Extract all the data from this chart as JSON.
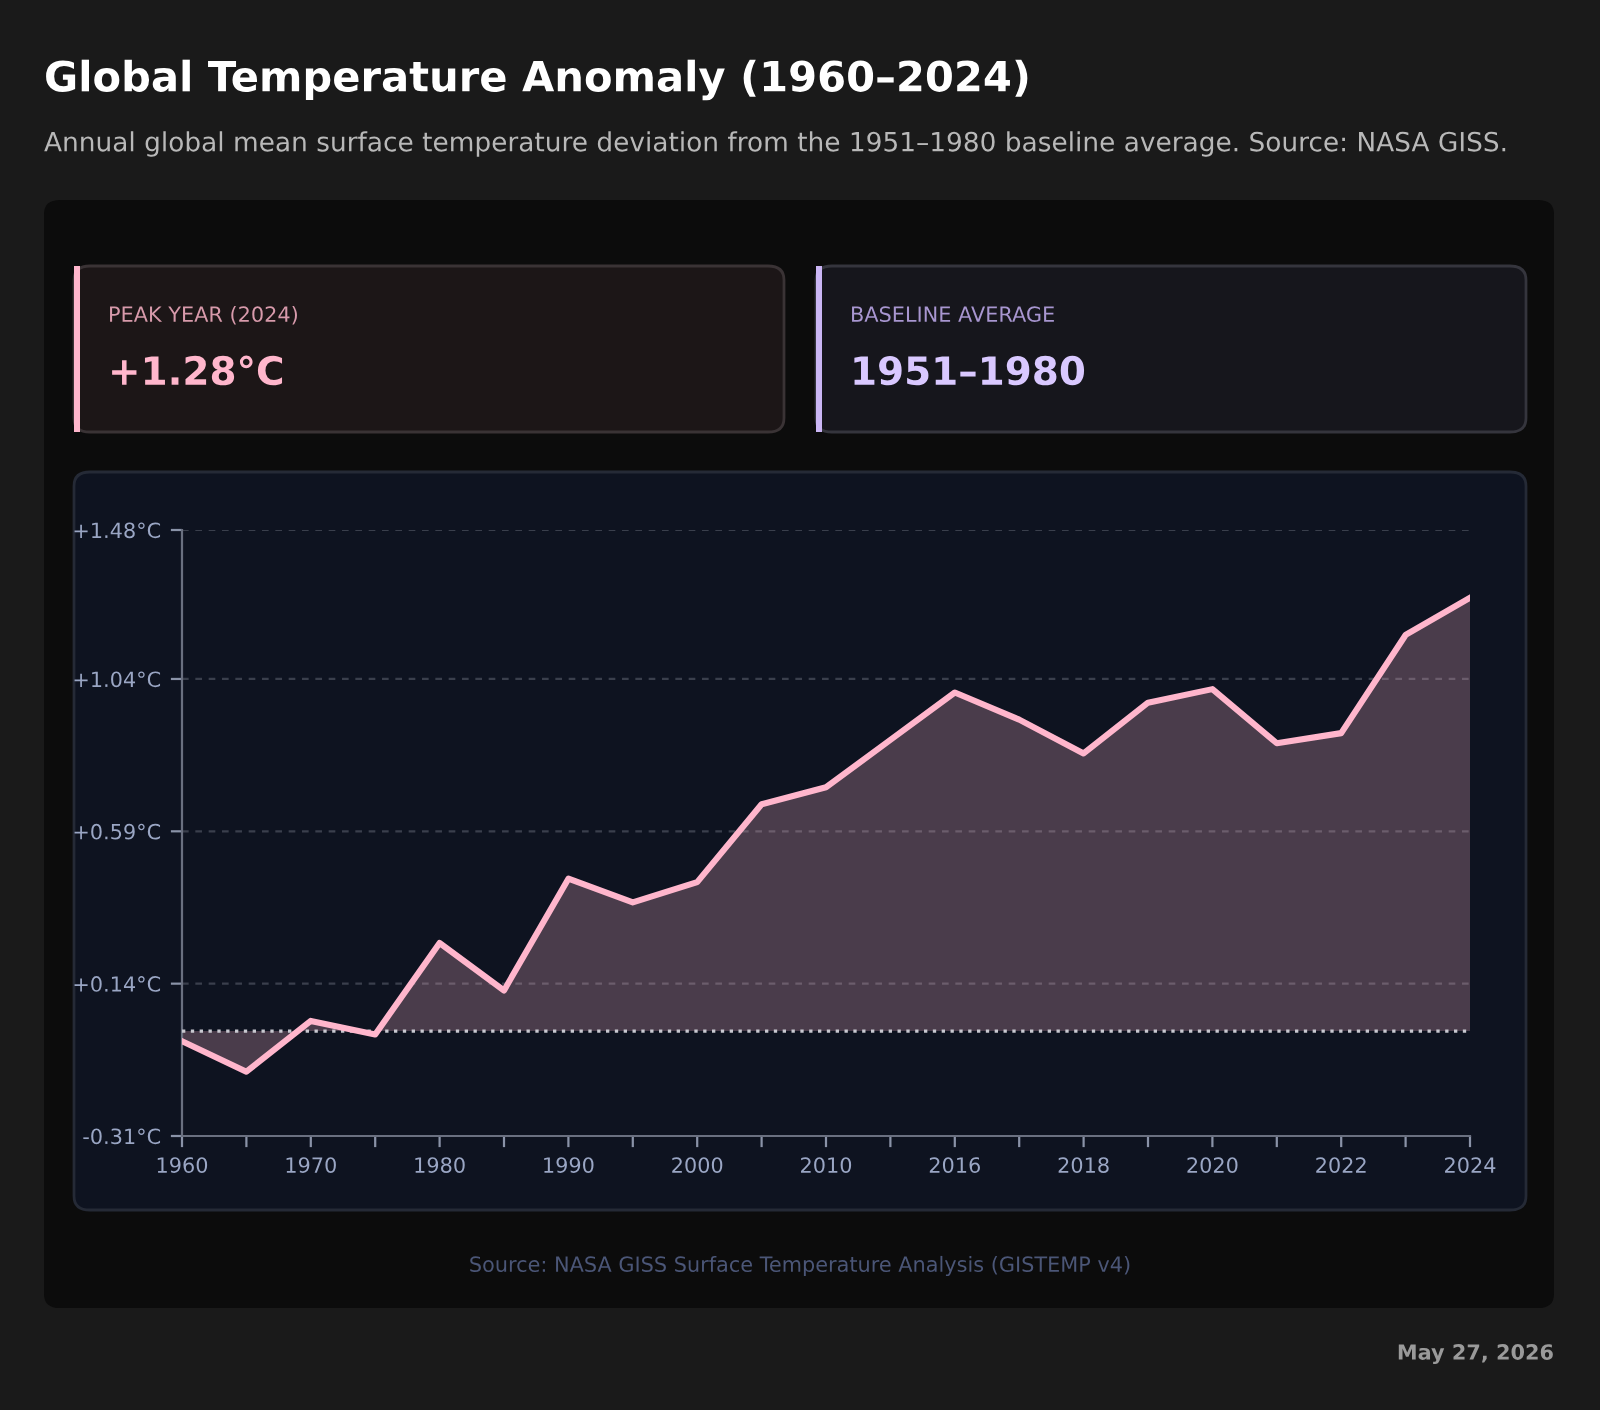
{
  "chart_data": {
    "type": "area",
    "title": "Global Temperature Anomaly (1960–2024)",
    "subtitle": "Annual global mean surface temperature deviation from the 1951–1980 baseline average. Source: NASA GISS.",
    "annotations": [
      "PEAK YEAR (2024)",
      "+1.28°C",
      "BASELINE AVERAGE",
      "1951–1980",
      "Source: NASA GISS Surface Temperature Analysis (GISTEMP v4)",
      "May 27, 2026"
    ],
    "categories": [
      "1960",
      null,
      "1970",
      null,
      "1980",
      null,
      "1990",
      null,
      "2000",
      null,
      "2010",
      null,
      "2016",
      null,
      "2018",
      null,
      "2020",
      null,
      "2022",
      null,
      "2024"
    ],
    "series": [
      {
        "color": "#ffb6cc",
        "values": [
          -0.03,
          -0.12,
          0.03,
          -0.01,
          0.26,
          0.12,
          0.45,
          0.38,
          0.44,
          0.67,
          0.72,
          0.86,
          1.0,
          0.92,
          0.82,
          0.97,
          1.01,
          0.85,
          0.88,
          1.17,
          1.28
        ]
      }
    ],
    "ylim": [
      -0.31,
      1.48
    ],
    "yticks": [
      {
        "value": -0.31,
        "label": "-0.31°C"
      },
      {
        "value": 0.14,
        "label": "+0.14°C"
      },
      {
        "value": 0.59,
        "label": "+0.59°C"
      },
      {
        "value": 1.04,
        "label": "+1.04°C"
      },
      {
        "value": 1.48,
        "label": "+1.48°C"
      }
    ],
    "grid": "y",
    "ref_lines": [
      {
        "axis": "y",
        "value": 0,
        "color": "#c8c8d0",
        "line_style": "dotted"
      }
    ],
    "legend": false
  }
}
